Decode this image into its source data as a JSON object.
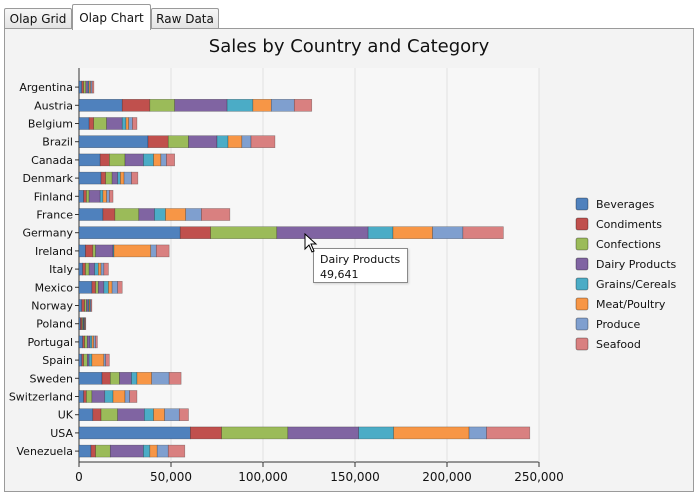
{
  "tabs": [
    {
      "label": "Olap Grid",
      "active": false
    },
    {
      "label": "Olap Chart",
      "active": true
    },
    {
      "label": "Raw Data",
      "active": false
    }
  ],
  "tooltip": {
    "category": "Dairy Products",
    "value": "49,641"
  },
  "colors": {
    "Beverages": "#4f81bd",
    "Condiments": "#c0504d",
    "Confections": "#9bbb59",
    "Dairy Products": "#8064a2",
    "Grains/Cereals": "#4bacc6",
    "Meat/Poultry": "#f79646",
    "Produce": "#7f9fcf",
    "Seafood": "#d98080"
  },
  "chart_data": {
    "type": "bar",
    "orientation": "horizontal",
    "stacked": true,
    "title": "Sales by Country and Category",
    "xlabel": "",
    "ylabel": "",
    "xlim": [
      0,
      250000
    ],
    "x_ticks": [
      "0",
      "50,000",
      "100,000",
      "150,000",
      "200,000",
      "250,000"
    ],
    "legend_position": "right",
    "grid": true,
    "categories": [
      "Argentina",
      "Austria",
      "Belgium",
      "Brazil",
      "Canada",
      "Denmark",
      "Finland",
      "France",
      "Germany",
      "Ireland",
      "Italy",
      "Mexico",
      "Norway",
      "Poland",
      "Portugal",
      "Spain",
      "Sweden",
      "Switzerland",
      "UK",
      "USA",
      "Venezuela"
    ],
    "series": [
      {
        "name": "Beverages",
        "values": [
          1500,
          23500,
          5500,
          37500,
          11500,
          12000,
          2500,
          13000,
          55000,
          3500,
          2000,
          7000,
          1500,
          800,
          2000,
          1500,
          12500,
          2500,
          7500,
          60500,
          6500
        ]
      },
      {
        "name": "Condiments",
        "values": [
          1000,
          15000,
          2500,
          11000,
          5000,
          2500,
          1500,
          6500,
          16500,
          4000,
          1500,
          2000,
          1500,
          800,
          1000,
          1000,
          4500,
          1500,
          4500,
          17000,
          2500
        ]
      },
      {
        "name": "Confections",
        "values": [
          1200,
          13500,
          7000,
          11000,
          8500,
          3500,
          1500,
          13000,
          36000,
          1500,
          2000,
          1500,
          1000,
          500,
          1500,
          2000,
          5000,
          3000,
          9000,
          36000,
          8000
        ]
      },
      {
        "name": "Dairy Products",
        "values": [
          1300,
          28500,
          8500,
          15500,
          10000,
          3000,
          6000,
          8500,
          49641,
          9500,
          3000,
          3000,
          1000,
          400,
          1500,
          1000,
          6500,
          7000,
          14500,
          38500,
          18000
        ]
      },
      {
        "name": "Grains/Cereals",
        "values": [
          500,
          14000,
          2000,
          6000,
          5500,
          1500,
          1500,
          6000,
          13500,
          500,
          2000,
          2500,
          500,
          300,
          1000,
          1500,
          3000,
          4500,
          5000,
          19000,
          3500
        ]
      },
      {
        "name": "Meat/Poultry",
        "values": [
          800,
          10000,
          1500,
          7500,
          4000,
          2000,
          2000,
          11000,
          21500,
          20000,
          1500,
          2000,
          500,
          300,
          1000,
          6500,
          8000,
          6500,
          6000,
          41000,
          4000
        ]
      },
      {
        "name": "Produce",
        "values": [
          800,
          12500,
          2000,
          5000,
          3000,
          4000,
          1500,
          8500,
          16500,
          3000,
          1500,
          3000,
          500,
          300,
          1000,
          1000,
          9500,
          2500,
          8000,
          9500,
          6000
        ]
      },
      {
        "name": "Seafood",
        "values": [
          1000,
          9500,
          2500,
          13000,
          4500,
          3500,
          2000,
          15500,
          22000,
          7000,
          2500,
          2500,
          500,
          300,
          1000,
          2000,
          6500,
          4000,
          5000,
          23500,
          9000
        ]
      }
    ]
  }
}
